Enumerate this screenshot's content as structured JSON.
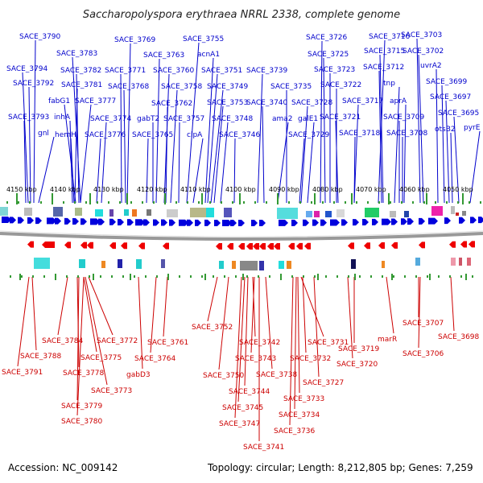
{
  "title": "Saccharopolyspora erythraea NRRL 2338, complete genome",
  "footer": {
    "accession": "Accession: NC_009142",
    "topology": "Topology: circular; Length: 8,212,805 bp; Genes: 7,259"
  },
  "colors": {
    "forward": "#0000dd",
    "reverse": "#ee0000",
    "top_label": "#0000cc",
    "bottom_label": "#cc0000",
    "tick": "#339933",
    "axis": "#888888"
  },
  "scale": {
    "ticks": [
      "4150 kbp",
      "4140 kbp",
      "4130 kbp",
      "4120 kbp",
      "4110 kbp",
      "4100 kbp",
      "4090 kbp",
      "4080 kbp",
      "4070 kbp",
      "4060 kbp",
      "4050 kbp"
    ]
  },
  "top_genes": [
    "SACE_3790",
    "SACE_3794",
    "SACE_3792",
    "SACE_3793",
    "gnl",
    "SACE_3783",
    "SACE_3782",
    "SACE_3781",
    "fabG1",
    "inhA",
    "hemH",
    "SACE_3777",
    "SACE_3774",
    "SACE_3776",
    "SACE_3769",
    "SACE_3771",
    "SACE_3768",
    "SACE_3763",
    "SACE_3760",
    "SACE_3758",
    "SACE_3762",
    "gabT2",
    "SACE_3765",
    "SACE_3757",
    "SACE_3755",
    "acnA1",
    "SACE_3751",
    "SACE_3749",
    "SACE_3753",
    "SACE_3748",
    "clpA",
    "SACE_3746",
    "SACE_3739",
    "SACE_3740",
    "ama2",
    "SACE_3735",
    "SACE_3728",
    "galE1",
    "SACE_3729",
    "SACE_3726",
    "SACE_3725",
    "SACE_3723",
    "SACE_3722",
    "SACE_3721",
    "SACE_3716",
    "SACE_3715",
    "SACE_3712",
    "tnp",
    "SACE_3717",
    "SACE_3718",
    "aprA",
    "SACE_3709",
    "SACE_3708",
    "SACE_3703",
    "SACE_3702",
    "uvrA2",
    "SACE_3699",
    "SACE_3697",
    "SACE_3695",
    "otsB2",
    "pyrE"
  ],
  "bottom_genes": [
    "SACE_3791",
    "SACE_3788",
    "SACE_3784",
    "SACE_3778",
    "SACE_3779",
    "SACE_3780",
    "SACE_3775",
    "SACE_3773",
    "SACE_3772",
    "gabD3",
    "SACE_3764",
    "SACE_3761",
    "SACE_3752",
    "SACE_3750",
    "SACE_3747",
    "SACE_3745",
    "SACE_3744",
    "SACE_3742",
    "SACE_3743",
    "SACE_3741",
    "SACE_3738",
    "SACE_3736",
    "SACE_3734",
    "SACE_3733",
    "SACE_3732",
    "SACE_3731",
    "SACE_3727",
    "SACE_3720",
    "SACE_3719",
    "marR",
    "SACE_3707",
    "SACE_3706",
    "SACE_3698"
  ]
}
